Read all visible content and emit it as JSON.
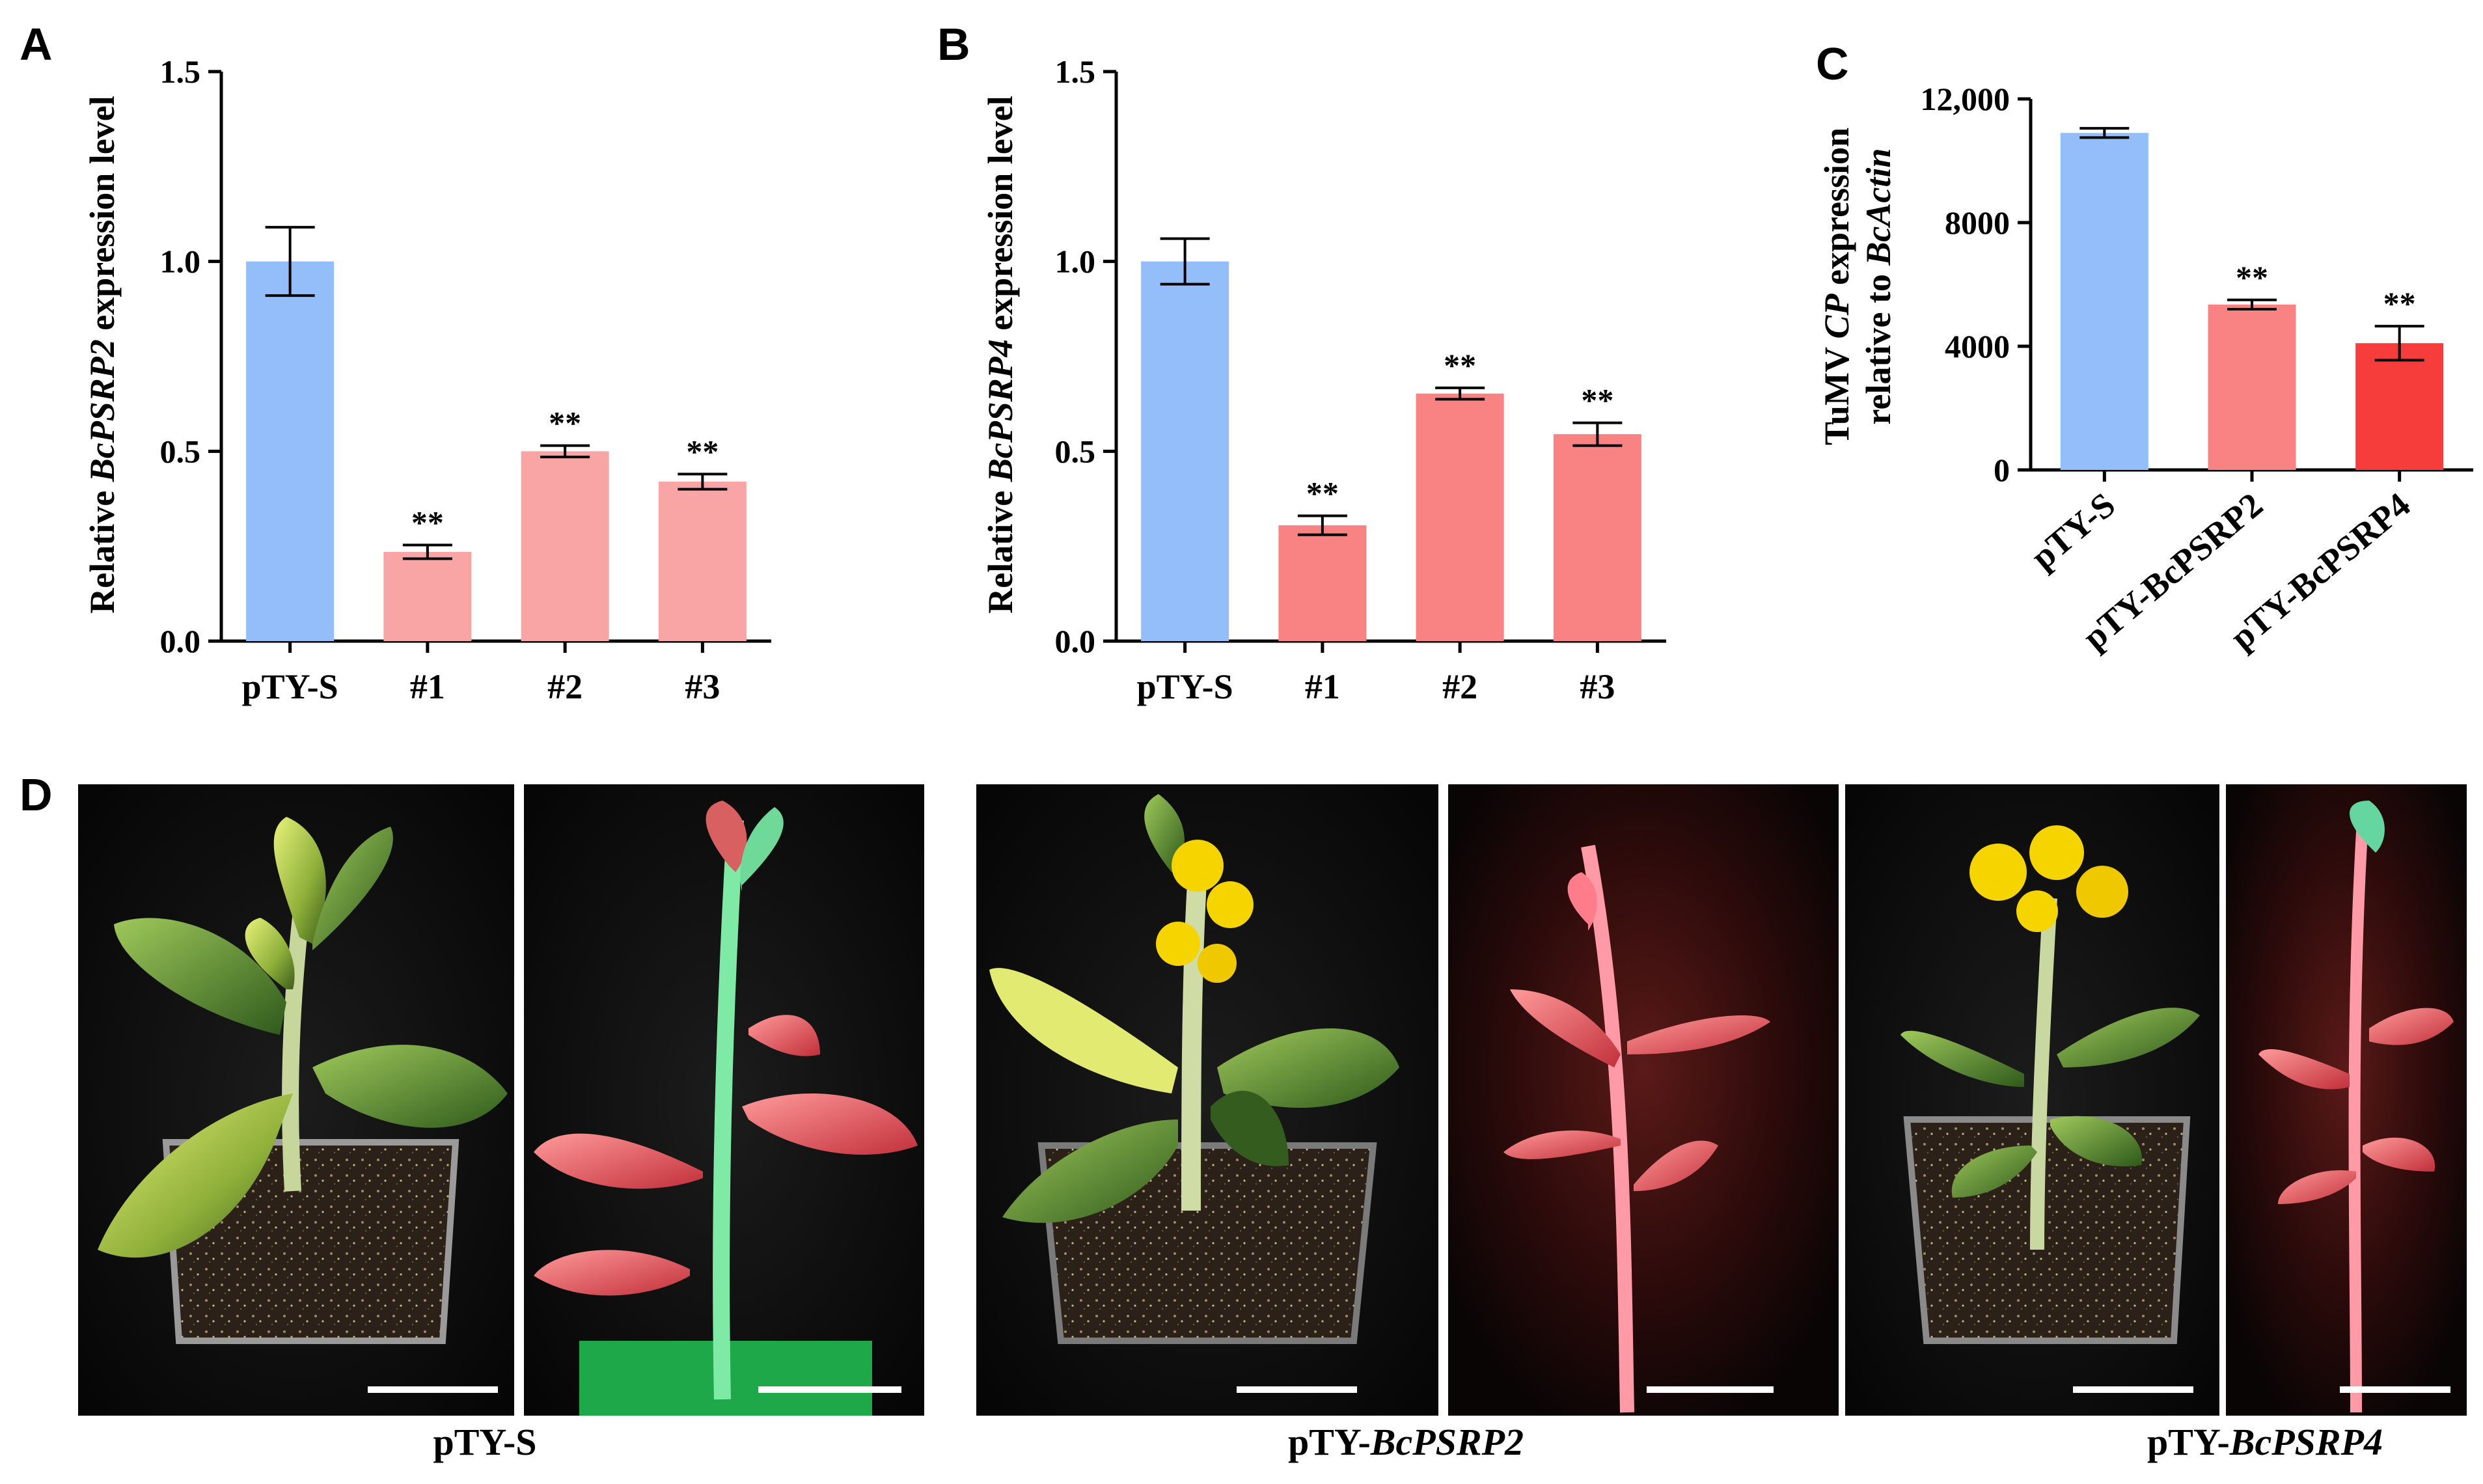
{
  "panels": {
    "a": "A",
    "b": "B",
    "c": "C",
    "d": "D"
  },
  "chart_data": [
    {
      "type": "bar",
      "panel": "A",
      "ylabel_parts": [
        {
          "text": "Relative ",
          "italic": false
        },
        {
          "text": "BcPSRP2",
          "italic": true
        },
        {
          "text": " expression level",
          "italic": false
        }
      ],
      "categories": [
        "pTY-S",
        "#1",
        "#2",
        "#3"
      ],
      "values": [
        1.0,
        0.235,
        0.5,
        0.42
      ],
      "errors": [
        0.09,
        0.018,
        0.015,
        0.02
      ],
      "significance": [
        "",
        "**",
        "**",
        "**"
      ],
      "colors": [
        "#93BEF9",
        "#F9A5A5",
        "#F9A5A5",
        "#F9A5A5"
      ],
      "ylim": [
        0,
        1.5
      ],
      "yticks": [
        0.0,
        0.5,
        1.0,
        1.5
      ],
      "ytick_labels": [
        "0.0",
        "0.5",
        "1.0",
        "1.5"
      ]
    },
    {
      "type": "bar",
      "panel": "B",
      "ylabel_parts": [
        {
          "text": "Relative ",
          "italic": false
        },
        {
          "text": "BcPSRP4",
          "italic": true
        },
        {
          "text": " expression level",
          "italic": false
        }
      ],
      "categories": [
        "pTY-S",
        "#1",
        "#2",
        "#3"
      ],
      "values": [
        1.0,
        0.305,
        0.652,
        0.545
      ],
      "errors": [
        0.06,
        0.025,
        0.015,
        0.03
      ],
      "significance": [
        "",
        "**",
        "**",
        "**"
      ],
      "colors": [
        "#93BEF9",
        "#F98383",
        "#F98383",
        "#F98383"
      ],
      "ylim": [
        0,
        1.5
      ],
      "yticks": [
        0.0,
        0.5,
        1.0,
        1.5
      ],
      "ytick_labels": [
        "0.0",
        "0.5",
        "1.0",
        "1.5"
      ]
    },
    {
      "type": "bar",
      "panel": "C",
      "ylabel_lines": [
        [
          {
            "text": "TuMV ",
            "italic": false
          },
          {
            "text": "CP",
            "italic": true
          },
          {
            "text": " expression",
            "italic": false
          }
        ],
        [
          {
            "text": "relative to ",
            "italic": false
          },
          {
            "text": "BcActin",
            "italic": true
          }
        ]
      ],
      "categories": [
        "pTY-S",
        "pTY-BcPSRP2",
        "pTY-BcPSRP4"
      ],
      "values": [
        10900,
        5350,
        4100
      ],
      "errors": [
        150,
        150,
        550
      ],
      "significance": [
        "",
        "**",
        "**"
      ],
      "colors": [
        "#93BEF9",
        "#F98383",
        "#F73C3C"
      ],
      "ylim": [
        0,
        12000
      ],
      "yticks": [
        0,
        4000,
        8000,
        12000
      ],
      "ytick_labels": [
        "0",
        "4000",
        "8000",
        "12,000"
      ]
    }
  ],
  "photos": {
    "captions": [
      [
        {
          "text": "pTY-S",
          "italic": false
        }
      ],
      [
        {
          "text": "pTY-",
          "italic": false
        },
        {
          "text": "BcPSRP2",
          "italic": true
        }
      ],
      [
        {
          "text": "pTY-",
          "italic": false
        },
        {
          "text": "BcPSRP4",
          "italic": true
        }
      ]
    ]
  }
}
